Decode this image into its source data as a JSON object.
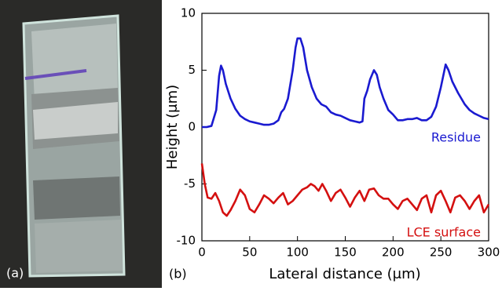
{
  "photo_label": "(a)",
  "chart_data": {
    "type": "line",
    "panel_label": "(b)",
    "x_label": "Lateral distance (μm)",
    "y_label": "Height (μm)",
    "xlim": [
      0,
      300
    ],
    "xticks": [
      0,
      50,
      100,
      150,
      200,
      250,
      300
    ],
    "ylim": [
      -10,
      10
    ],
    "yticks": [
      -10,
      -5,
      0,
      5,
      10
    ],
    "grid": false,
    "series": [
      {
        "name": "Residue",
        "color": "#1a1ad0",
        "x": [
          0,
          5,
          10,
          15,
          18,
          20,
          22,
          25,
          30,
          35,
          40,
          45,
          50,
          55,
          60,
          65,
          70,
          75,
          80,
          83,
          86,
          90,
          95,
          98,
          100,
          103,
          106,
          110,
          115,
          120,
          125,
          130,
          135,
          140,
          145,
          150,
          155,
          160,
          165,
          168,
          170,
          173,
          176,
          180,
          183,
          186,
          190,
          195,
          200,
          205,
          210,
          215,
          220,
          225,
          230,
          235,
          240,
          245,
          250,
          255,
          258,
          262,
          268,
          275,
          280,
          285,
          290,
          295,
          300
        ],
        "values": [
          0,
          0,
          0.1,
          1.5,
          4.5,
          5.4,
          5,
          3.8,
          2.5,
          1.6,
          1,
          0.7,
          0.5,
          0.4,
          0.3,
          0.2,
          0.2,
          0.3,
          0.6,
          1.3,
          1.6,
          2.5,
          5,
          7,
          7.8,
          7.8,
          7,
          5,
          3.5,
          2.5,
          2,
          1.8,
          1.3,
          1.1,
          1,
          0.8,
          0.6,
          0.5,
          0.4,
          0.5,
          2.5,
          3.2,
          4.2,
          5,
          4.6,
          3.5,
          2.5,
          1.5,
          1.1,
          0.6,
          0.6,
          0.7,
          0.7,
          0.8,
          0.6,
          0.6,
          0.9,
          1.8,
          3.5,
          5.5,
          5,
          4,
          3,
          2,
          1.5,
          1.2,
          1,
          0.8,
          0.7
        ]
      },
      {
        "name": "LCE surface",
        "color": "#d41010",
        "x": [
          0,
          3,
          6,
          10,
          14,
          18,
          22,
          26,
          30,
          35,
          40,
          45,
          50,
          55,
          60,
          65,
          70,
          75,
          80,
          85,
          90,
          95,
          100,
          105,
          110,
          114,
          118,
          122,
          126,
          130,
          135,
          140,
          145,
          150,
          155,
          160,
          165,
          170,
          175,
          180,
          185,
          190,
          195,
          200,
          205,
          210,
          215,
          220,
          225,
          230,
          235,
          240,
          245,
          250,
          255,
          260,
          265,
          270,
          275,
          280,
          285,
          290,
          295,
          300
        ],
        "values": [
          -3.2,
          -5,
          -6.2,
          -6.3,
          -5.8,
          -6.5,
          -7.5,
          -7.8,
          -7.3,
          -6.5,
          -5.5,
          -6,
          -7.2,
          -7.5,
          -6.8,
          -6,
          -6.3,
          -6.7,
          -6.2,
          -5.8,
          -6.8,
          -6.5,
          -6,
          -5.5,
          -5.3,
          -5,
          -5.2,
          -5.6,
          -5,
          -5.6,
          -6.5,
          -5.8,
          -5.5,
          -6.2,
          -7,
          -6.2,
          -5.6,
          -6.5,
          -5.5,
          -5.4,
          -6,
          -6.3,
          -6.3,
          -6.8,
          -7.2,
          -6.5,
          -6.3,
          -6.8,
          -7.3,
          -6.3,
          -6,
          -7.5,
          -6,
          -5.6,
          -6.5,
          -7.5,
          -6.2,
          -6,
          -6.5,
          -7.2,
          -6.5,
          -6,
          -7.5,
          -6.8
        ]
      }
    ]
  }
}
